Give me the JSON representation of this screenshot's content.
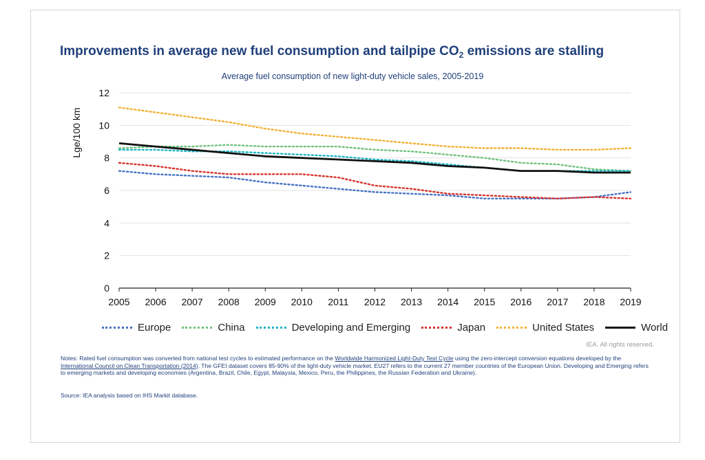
{
  "header": {
    "title_main": "Improvements in average new fuel consumption and tailpipe CO",
    "title_sub": "2",
    "title_end": " emissions are stalling",
    "subtitle": "Average fuel consumption of new light-duty vehicle sales, 2005-2019"
  },
  "chart_data": {
    "type": "line",
    "title": "Average fuel consumption of new light-duty vehicle sales, 2005-2019",
    "ylabel": "Lge/100 km",
    "xlabel": "",
    "ylim": [
      0,
      12
    ],
    "yticks": [
      "0",
      "2",
      "4",
      "6",
      "8",
      "10",
      "12"
    ],
    "grid": "horizontal",
    "legend_position": "bottom",
    "x": [
      "2005",
      "2006",
      "2007",
      "2008",
      "2009",
      "2010",
      "2011",
      "2012",
      "2013",
      "2014",
      "2015",
      "2016",
      "2017",
      "2018",
      "2019"
    ],
    "series": [
      {
        "name": "Europe",
        "color": "#4472c4",
        "style": "dotted",
        "values": [
          7.2,
          7.0,
          6.9,
          6.8,
          6.5,
          6.3,
          6.1,
          5.9,
          5.8,
          5.7,
          5.5,
          5.5,
          5.5,
          5.6,
          5.9
        ]
      },
      {
        "name": "China",
        "color": "#70c27d",
        "style": "dotted",
        "values": [
          8.6,
          8.7,
          8.7,
          8.8,
          8.7,
          8.7,
          8.7,
          8.5,
          8.4,
          8.2,
          8.0,
          7.7,
          7.6,
          7.3,
          7.2
        ]
      },
      {
        "name": "Developing and Emerging",
        "color": "#1fb5c4",
        "style": "dotted",
        "values": [
          8.5,
          8.5,
          8.4,
          8.4,
          8.3,
          8.2,
          8.1,
          7.9,
          7.8,
          7.6,
          7.4,
          7.2,
          7.2,
          7.2,
          7.2
        ]
      },
      {
        "name": "Japan",
        "color": "#d9312b",
        "style": "dotted",
        "values": [
          7.7,
          7.5,
          7.2,
          7.0,
          7.0,
          7.0,
          6.8,
          6.3,
          6.1,
          5.8,
          5.7,
          5.6,
          5.5,
          5.6,
          5.5
        ]
      },
      {
        "name": "United States",
        "color": "#f2b134",
        "style": "dotted",
        "values": [
          11.1,
          10.8,
          10.5,
          10.2,
          9.8,
          9.5,
          9.3,
          9.1,
          8.9,
          8.7,
          8.6,
          8.6,
          8.5,
          8.5,
          8.6
        ]
      },
      {
        "name": "World",
        "color": "#111111",
        "style": "solid",
        "values": [
          8.9,
          8.7,
          8.5,
          8.3,
          8.1,
          8.0,
          7.9,
          7.8,
          7.7,
          7.5,
          7.4,
          7.2,
          7.2,
          7.1,
          7.1
        ]
      }
    ]
  },
  "footer": {
    "rights": "IEA. All rights reserved.",
    "notes_1": "Notes: Rated fuel consumption was converted from national test cycles to estimated performance on the ",
    "notes_link1": "Worldwide Harmonized Light-Duty Test Cycle",
    "notes_2": " using the zero-intercept conversion equations developed by the ",
    "notes_link2": "International Council on Clean Transportation (2014)",
    "notes_3": ". The GFEI dataset covers 85-90% of the light-duty vehicle market. EU27 refers to the current 27 member countries of the European Union. Developing and Emerging refers to emerging markets and developing economies (Argentina, Brazil, Chile, Egypt, Malaysia, Mexico, Peru, the Philippines, the Russian Federation and Ukraine).",
    "source": "Source: IEA analysis based on IHS Markit database."
  }
}
